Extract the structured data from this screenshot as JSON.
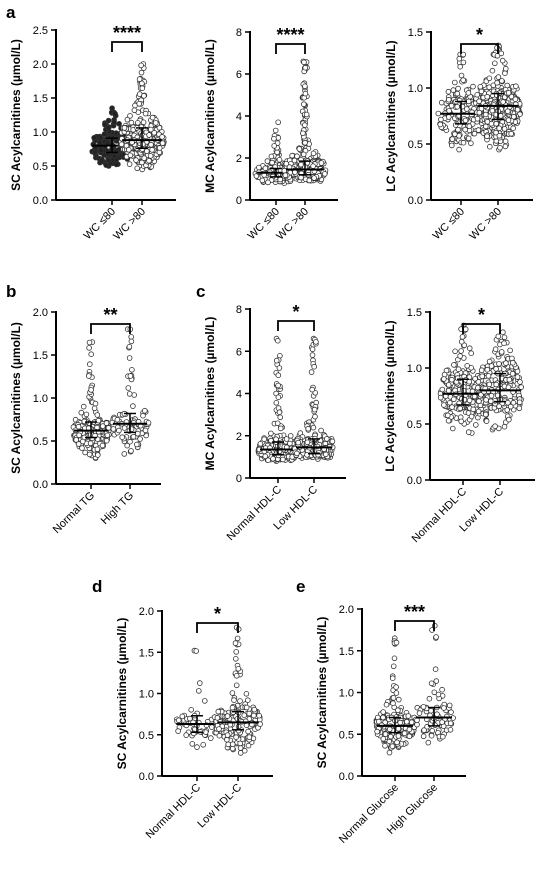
{
  "panel_letters": [
    "a",
    "b",
    "c",
    "d",
    "e"
  ],
  "chart_data": [
    {
      "id": "a1",
      "type": "scatter",
      "panel": "a",
      "ylabel": "SC Acylcarnitines (µmol/L)",
      "ylim": [
        0,
        2.5
      ],
      "yticks": [
        0.0,
        0.5,
        1.0,
        1.5,
        2.0,
        2.5
      ],
      "categories": [
        "WC ≤80",
        "WC >80"
      ],
      "significance": "****",
      "groups": [
        {
          "name": "WC ≤80",
          "median": 0.8,
          "q1": 0.7,
          "q3": 0.91,
          "min": 0.5,
          "max": 1.35,
          "n": 160,
          "filled": true
        },
        {
          "name": "WC >80",
          "median": 0.88,
          "q1": 0.76,
          "q3": 1.06,
          "min": 0.45,
          "max": 2.0,
          "n": 340,
          "filled": false
        }
      ]
    },
    {
      "id": "a2",
      "type": "scatter",
      "panel": "a",
      "ylabel": "MC Acylcarnitines (µmol/L)",
      "ylim": [
        0,
        8
      ],
      "yticks": [
        0,
        2,
        4,
        6,
        8
      ],
      "categories": [
        "WC ≤80",
        "WC >80"
      ],
      "significance": "****",
      "groups": [
        {
          "name": "WC ≤80",
          "median": 1.3,
          "q1": 1.1,
          "q3": 1.5,
          "min": 0.8,
          "max": 3.7,
          "n": 160,
          "filled": false
        },
        {
          "name": "WC >80",
          "median": 1.45,
          "q1": 1.2,
          "q3": 1.85,
          "min": 0.9,
          "max": 6.6,
          "n": 340,
          "filled": false
        }
      ]
    },
    {
      "id": "a3",
      "type": "scatter",
      "panel": "a",
      "ylabel": "LC Acylcarnitines (µmol/L)",
      "ylim": [
        0,
        1.5
      ],
      "yticks": [
        0.0,
        0.5,
        1.0,
        1.5
      ],
      "categories": [
        "WC ≤80",
        "WC >80"
      ],
      "significance": "*",
      "groups": [
        {
          "name": "WC ≤80",
          "median": 0.77,
          "q1": 0.68,
          "q3": 0.88,
          "min": 0.45,
          "max": 1.3,
          "n": 160,
          "filled": false
        },
        {
          "name": "WC >80",
          "median": 0.84,
          "q1": 0.72,
          "q3": 0.95,
          "min": 0.45,
          "max": 1.38,
          "n": 340,
          "filled": false
        }
      ]
    },
    {
      "id": "b",
      "type": "scatter",
      "panel": "b",
      "ylabel": "SC Acylcarnitines (µmol/L)",
      "ylim": [
        0,
        2.0
      ],
      "yticks": [
        0.0,
        0.5,
        1.0,
        1.5,
        2.0
      ],
      "categories": [
        "Normal TG",
        "High TG"
      ],
      "significance": "**",
      "groups": [
        {
          "name": "Normal TG",
          "median": 0.62,
          "q1": 0.54,
          "q3": 0.72,
          "min": 0.3,
          "max": 1.65,
          "n": 200,
          "filled": false
        },
        {
          "name": "High TG",
          "median": 0.7,
          "q1": 0.6,
          "q3": 0.82,
          "min": 0.35,
          "max": 1.8,
          "n": 90,
          "filled": false
        }
      ]
    },
    {
      "id": "c1",
      "type": "scatter",
      "panel": "c",
      "ylabel": "MC Acylcarnitines (µmol/L)",
      "ylim": [
        0,
        8
      ],
      "yticks": [
        0,
        2,
        4,
        6,
        8
      ],
      "categories": [
        "Normal HDL-C",
        "Low HDL-C"
      ],
      "significance": "*",
      "groups": [
        {
          "name": "Normal HDL-C",
          "median": 1.35,
          "q1": 1.1,
          "q3": 1.7,
          "min": 0.8,
          "max": 6.6,
          "n": 220,
          "filled": false
        },
        {
          "name": "Low HDL-C",
          "median": 1.45,
          "q1": 1.15,
          "q3": 1.85,
          "min": 0.9,
          "max": 6.6,
          "n": 220,
          "filled": false
        }
      ]
    },
    {
      "id": "c2",
      "type": "scatter",
      "panel": "c",
      "ylabel": "LC Acylcarnitines (µmol/L)",
      "ylim": [
        0,
        1.5
      ],
      "yticks": [
        0.0,
        0.5,
        1.0,
        1.5
      ],
      "categories": [
        "Normal HDL-C",
        "Low HDL-C"
      ],
      "significance": "*",
      "groups": [
        {
          "name": "Normal HDL-C",
          "median": 0.77,
          "q1": 0.67,
          "q3": 0.9,
          "min": 0.42,
          "max": 1.38,
          "n": 220,
          "filled": false
        },
        {
          "name": "Low HDL-C",
          "median": 0.8,
          "q1": 0.7,
          "q3": 0.95,
          "min": 0.45,
          "max": 1.32,
          "n": 220,
          "filled": false
        }
      ]
    },
    {
      "id": "d",
      "type": "scatter",
      "panel": "d",
      "ylabel": "SC Acylcarnitines (µmol/L)",
      "ylim": [
        0,
        2.0
      ],
      "yticks": [
        0.0,
        0.5,
        1.0,
        1.5,
        2.0
      ],
      "categories": [
        "Normal HDL-C",
        "Low HDL-C"
      ],
      "significance": "*",
      "groups": [
        {
          "name": "Normal HDL-C",
          "median": 0.63,
          "q1": 0.53,
          "q3": 0.73,
          "min": 0.35,
          "max": 1.52,
          "n": 60,
          "filled": false
        },
        {
          "name": "Low HDL-C",
          "median": 0.65,
          "q1": 0.56,
          "q3": 0.78,
          "min": 0.28,
          "max": 1.8,
          "n": 180,
          "filled": false
        }
      ]
    },
    {
      "id": "e",
      "type": "scatter",
      "panel": "e",
      "ylabel": "SC Acylcarnitines (µmol/L)",
      "ylim": [
        0,
        2.0
      ],
      "yticks": [
        0.0,
        0.5,
        1.0,
        1.5,
        2.0
      ],
      "categories": [
        "Normal Glucose",
        "High Glucose"
      ],
      "significance": "***",
      "groups": [
        {
          "name": "Normal Glucose",
          "median": 0.6,
          "q1": 0.52,
          "q3": 0.7,
          "min": 0.28,
          "max": 1.65,
          "n": 200,
          "filled": false
        },
        {
          "name": "High Glucose",
          "median": 0.7,
          "q1": 0.6,
          "q3": 0.82,
          "min": 0.4,
          "max": 1.8,
          "n": 80,
          "filled": false
        }
      ]
    }
  ]
}
